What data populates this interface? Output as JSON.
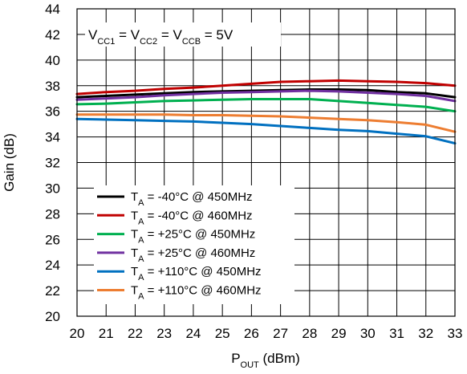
{
  "chart_data": {
    "type": "line",
    "title": "",
    "xlabel": {
      "main": "P",
      "sub": "OUT",
      "rest": " (dBm)"
    },
    "ylabel": "Gain (dB)",
    "xlim": [
      20,
      33
    ],
    "ylim": [
      20,
      44
    ],
    "xticks": [
      "20",
      "21",
      "22",
      "23",
      "24",
      "25",
      "26",
      "27",
      "28",
      "29",
      "30",
      "31",
      "32",
      "33"
    ],
    "yticks": [
      "20",
      "22",
      "24",
      "26",
      "28",
      "30",
      "32",
      "34",
      "36",
      "38",
      "40",
      "42",
      "44"
    ],
    "grid": true,
    "annotation": [
      {
        "t": "V",
        "s": false
      },
      {
        "t": "CC1",
        "s": true
      },
      {
        "t": " = V",
        "s": false
      },
      {
        "t": "CC2",
        "s": true
      },
      {
        "t": " = V",
        "s": false
      },
      {
        "t": "CCB",
        "s": true
      },
      {
        "t": " = 5V",
        "s": false
      }
    ],
    "legend_position": "bottom-left",
    "series": [
      {
        "name_main": "T",
        "name_sub": "A",
        "name_rest": " = -40°C @ 450MHz",
        "color": "#000000",
        "x": [
          20,
          21,
          22,
          23,
          24,
          25,
          26,
          27,
          28,
          29,
          30,
          31,
          32,
          33
        ],
        "values": [
          37.1,
          37.2,
          37.3,
          37.4,
          37.5,
          37.55,
          37.6,
          37.65,
          37.7,
          37.7,
          37.65,
          37.5,
          37.4,
          37.1
        ]
      },
      {
        "name_main": "T",
        "name_sub": "A",
        "name_rest": " = -40°C @ 460MHz",
        "color": "#c00000",
        "x": [
          20,
          21,
          22,
          23,
          24,
          25,
          26,
          27,
          28,
          29,
          30,
          31,
          32,
          33
        ],
        "values": [
          37.35,
          37.5,
          37.6,
          37.75,
          37.85,
          38.0,
          38.15,
          38.3,
          38.35,
          38.4,
          38.35,
          38.3,
          38.2,
          38.0
        ]
      },
      {
        "name_main": "T",
        "name_sub": "A",
        "name_rest": " = +25°C @ 450MHz",
        "color": "#00b050",
        "x": [
          20,
          21,
          22,
          23,
          24,
          25,
          26,
          27,
          28,
          29,
          30,
          31,
          32,
          33
        ],
        "values": [
          36.55,
          36.6,
          36.7,
          36.8,
          36.85,
          36.9,
          36.95,
          36.95,
          36.95,
          36.8,
          36.65,
          36.5,
          36.35,
          36.0
        ]
      },
      {
        "name_main": "T",
        "name_sub": "A",
        "name_rest": " = +25°C @ 460MHz",
        "color": "#7030a0",
        "x": [
          20,
          21,
          22,
          23,
          24,
          25,
          26,
          27,
          28,
          29,
          30,
          31,
          32,
          33
        ],
        "values": [
          36.9,
          37.0,
          37.1,
          37.25,
          37.35,
          37.45,
          37.5,
          37.55,
          37.6,
          37.55,
          37.45,
          37.35,
          37.2,
          36.8
        ]
      },
      {
        "name_main": "T",
        "name_sub": "A",
        "name_rest": " = +110°C @ 450MHz",
        "color": "#0070c0",
        "x": [
          20,
          21,
          22,
          23,
          24,
          25,
          26,
          27,
          28,
          29,
          30,
          31,
          32,
          33
        ],
        "values": [
          35.4,
          35.35,
          35.3,
          35.25,
          35.2,
          35.1,
          35.0,
          34.85,
          34.7,
          34.55,
          34.45,
          34.25,
          34.05,
          33.5
        ]
      },
      {
        "name_main": "T",
        "name_sub": "A",
        "name_rest": " = +110°C @ 460MHz",
        "color": "#ed7d31",
        "x": [
          20,
          21,
          22,
          23,
          24,
          25,
          26,
          27,
          28,
          29,
          30,
          31,
          32,
          33
        ],
        "values": [
          35.75,
          35.75,
          35.75,
          35.75,
          35.7,
          35.7,
          35.65,
          35.6,
          35.5,
          35.4,
          35.3,
          35.15,
          34.95,
          34.4
        ]
      }
    ]
  }
}
